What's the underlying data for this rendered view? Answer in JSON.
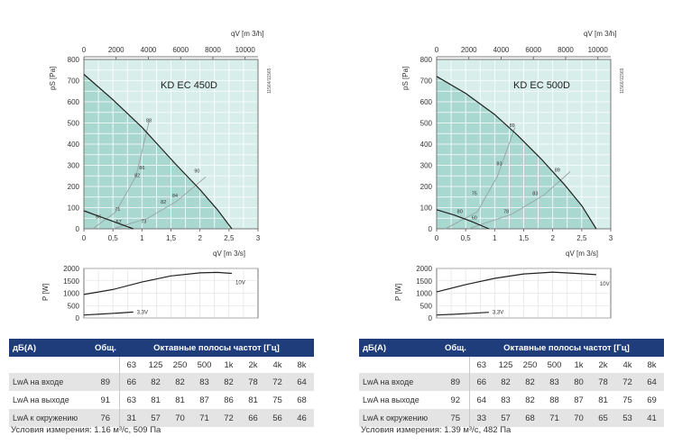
{
  "chart_data": [
    {
      "type": "line",
      "model": "KD EC 450D",
      "doc_code": "11564/11565",
      "x_label": "q",
      "x_label_sub": "V",
      "x_unit_bottom": "[m 3/s]",
      "x_unit_top": "[m 3/h]",
      "y_label": "p",
      "y_label_sub": "S",
      "y_unit": "[Pa]",
      "x_range": [
        0,
        3
      ],
      "y_range": [
        0,
        800
      ],
      "x_ticks": [
        "0",
        "0,5",
        "1",
        "1,5",
        "2",
        "2,5",
        "3"
      ],
      "x_top_ticks": [
        "0",
        "2000",
        "4000",
        "6000",
        "8000",
        "10000"
      ],
      "y_ticks": [
        "0",
        "100",
        "200",
        "300",
        "400",
        "500",
        "600",
        "700",
        "800"
      ],
      "fan_curve": [
        [
          0,
          730
        ],
        [
          0.5,
          610
        ],
        [
          1.0,
          480
        ],
        [
          1.3,
          390
        ],
        [
          1.6,
          300
        ],
        [
          2.0,
          185
        ],
        [
          2.3,
          90
        ],
        [
          2.55,
          0
        ]
      ],
      "low_curve": [
        [
          0,
          85
        ],
        [
          0.3,
          55
        ],
        [
          0.6,
          25
        ],
        [
          0.85,
          0
        ]
      ],
      "system_lines": [
        [
          [
            0.15,
            0
          ],
          [
            0.55,
            80
          ],
          [
            0.9,
            250
          ],
          [
            1.12,
            505
          ]
        ],
        [
          [
            0.5,
            0
          ],
          [
            1.1,
            50
          ],
          [
            1.6,
            130
          ],
          [
            2.1,
            245
          ]
        ]
      ],
      "labels": [
        {
          "text": "88",
          "x": 1.12,
          "y": 505
        },
        {
          "text": "86",
          "x": 1.0,
          "y": 280
        },
        {
          "text": "82",
          "x": 0.92,
          "y": 245
        },
        {
          "text": "71",
          "x": 0.58,
          "y": 85
        },
        {
          "text": "90",
          "x": 1.95,
          "y": 265
        },
        {
          "text": "84",
          "x": 1.57,
          "y": 150
        },
        {
          "text": "82",
          "x": 1.37,
          "y": 120
        },
        {
          "text": "56",
          "x": 0.25,
          "y": 50
        },
        {
          "text": "57",
          "x": 0.6,
          "y": 25
        },
        {
          "text": "73",
          "x": 1.03,
          "y": 28
        }
      ],
      "power": {
        "y_label": "P [W]",
        "y_ticks": [
          "0",
          "500",
          "1000",
          "1500",
          "2000"
        ],
        "y_range": [
          0,
          2000
        ],
        "curve_high": [
          [
            0,
            950
          ],
          [
            0.5,
            1150
          ],
          [
            1.0,
            1450
          ],
          [
            1.5,
            1700
          ],
          [
            2.0,
            1820
          ],
          [
            2.3,
            1840
          ],
          [
            2.55,
            1800
          ]
        ],
        "curve_low": [
          [
            0,
            120
          ],
          [
            0.3,
            160
          ],
          [
            0.6,
            200
          ],
          [
            0.85,
            240
          ]
        ],
        "label_high": "10V",
        "label_low": "3,3V"
      }
    },
    {
      "type": "line",
      "model": "KD EC 500D",
      "doc_code": "11566/11569",
      "x_label": "q",
      "x_label_sub": "V",
      "x_unit_bottom": "[m 3/s]",
      "x_unit_top": "[m 3/h]",
      "y_label": "p",
      "y_label_sub": "S",
      "y_unit": "[Pa]",
      "x_range": [
        0,
        3
      ],
      "y_range": [
        0,
        800
      ],
      "x_ticks": [
        "0",
        "0,5",
        "1",
        "1,5",
        "2",
        "2,5",
        "3"
      ],
      "x_top_ticks": [
        "0",
        "2000",
        "4000",
        "6000",
        "8000",
        "10000"
      ],
      "y_ticks": [
        "0",
        "100",
        "200",
        "300",
        "400",
        "500",
        "600",
        "700",
        "800"
      ],
      "fan_curve": [
        [
          0,
          720
        ],
        [
          0.5,
          640
        ],
        [
          1.0,
          540
        ],
        [
          1.4,
          440
        ],
        [
          1.8,
          330
        ],
        [
          2.2,
          210
        ],
        [
          2.5,
          110
        ],
        [
          2.75,
          0
        ]
      ],
      "low_curve": [
        [
          0,
          90
        ],
        [
          0.3,
          65
        ],
        [
          0.6,
          35
        ],
        [
          0.9,
          0
        ]
      ],
      "system_lines": [
        [
          [
            0.15,
            0
          ],
          [
            0.7,
            80
          ],
          [
            1.05,
            250
          ],
          [
            1.35,
            480
          ]
        ],
        [
          [
            0.55,
            0
          ],
          [
            1.3,
            70
          ],
          [
            1.85,
            160
          ],
          [
            2.3,
            270
          ]
        ]
      ],
      "labels": [
        {
          "text": "89",
          "x": 1.3,
          "y": 480
        },
        {
          "text": "83",
          "x": 1.08,
          "y": 300
        },
        {
          "text": "75",
          "x": 0.65,
          "y": 160
        },
        {
          "text": "80",
          "x": 0.4,
          "y": 75
        },
        {
          "text": "60",
          "x": 0.65,
          "y": 45
        },
        {
          "text": "89",
          "x": 2.08,
          "y": 270
        },
        {
          "text": "83",
          "x": 1.7,
          "y": 160
        },
        {
          "text": "78",
          "x": 1.2,
          "y": 75
        }
      ],
      "power": {
        "y_label": "P [W]",
        "y_ticks": [
          "0",
          "500",
          "1000",
          "1500",
          "2000"
        ],
        "y_range": [
          0,
          2000
        ],
        "curve_high": [
          [
            0,
            1050
          ],
          [
            0.5,
            1350
          ],
          [
            1.0,
            1600
          ],
          [
            1.5,
            1780
          ],
          [
            2.0,
            1850
          ],
          [
            2.4,
            1800
          ],
          [
            2.75,
            1750
          ]
        ],
        "curve_low": [
          [
            0,
            120
          ],
          [
            0.3,
            150
          ],
          [
            0.6,
            190
          ],
          [
            0.9,
            230
          ]
        ],
        "label_high": "10V",
        "label_low": "3,3V"
      }
    }
  ],
  "tables": [
    {
      "header": {
        "label": "дБ(A)",
        "total": "Общ.",
        "bands_title": "Октавные полосы частот [Гц]"
      },
      "freqs": [
        "63",
        "125",
        "250",
        "500",
        "1k",
        "2k",
        "4k",
        "8k"
      ],
      "rows": [
        {
          "label": "LwA на входе",
          "values": [
            "89",
            "66",
            "82",
            "82",
            "83",
            "82",
            "78",
            "72",
            "64"
          ]
        },
        {
          "label": "LwA на выходе",
          "values": [
            "91",
            "63",
            "81",
            "81",
            "87",
            "86",
            "81",
            "75",
            "68"
          ]
        },
        {
          "label": "LwA к окружению",
          "values": [
            "76",
            "31",
            "57",
            "70",
            "71",
            "72",
            "66",
            "56",
            "46"
          ]
        }
      ],
      "conditions": "Условия измерения: 1.16 м³/с, 509 Па"
    },
    {
      "header": {
        "label": "дБ(A)",
        "total": "Общ.",
        "bands_title": "Октавные полосы частот [Гц]"
      },
      "freqs": [
        "63",
        "125",
        "250",
        "500",
        "1k",
        "2k",
        "4k",
        "8k"
      ],
      "rows": [
        {
          "label": "LwA на входе",
          "values": [
            "89",
            "66",
            "82",
            "82",
            "83",
            "80",
            "78",
            "72",
            "64"
          ]
        },
        {
          "label": "LwA на выходе",
          "values": [
            "92",
            "64",
            "83",
            "82",
            "88",
            "87",
            "81",
            "75",
            "69"
          ]
        },
        {
          "label": "LwA к окружению",
          "values": [
            "75",
            "33",
            "57",
            "68",
            "71",
            "70",
            "65",
            "53",
            "41"
          ]
        }
      ],
      "conditions": "Условия измерения: 1.39 м³/с, 482 Па"
    }
  ]
}
